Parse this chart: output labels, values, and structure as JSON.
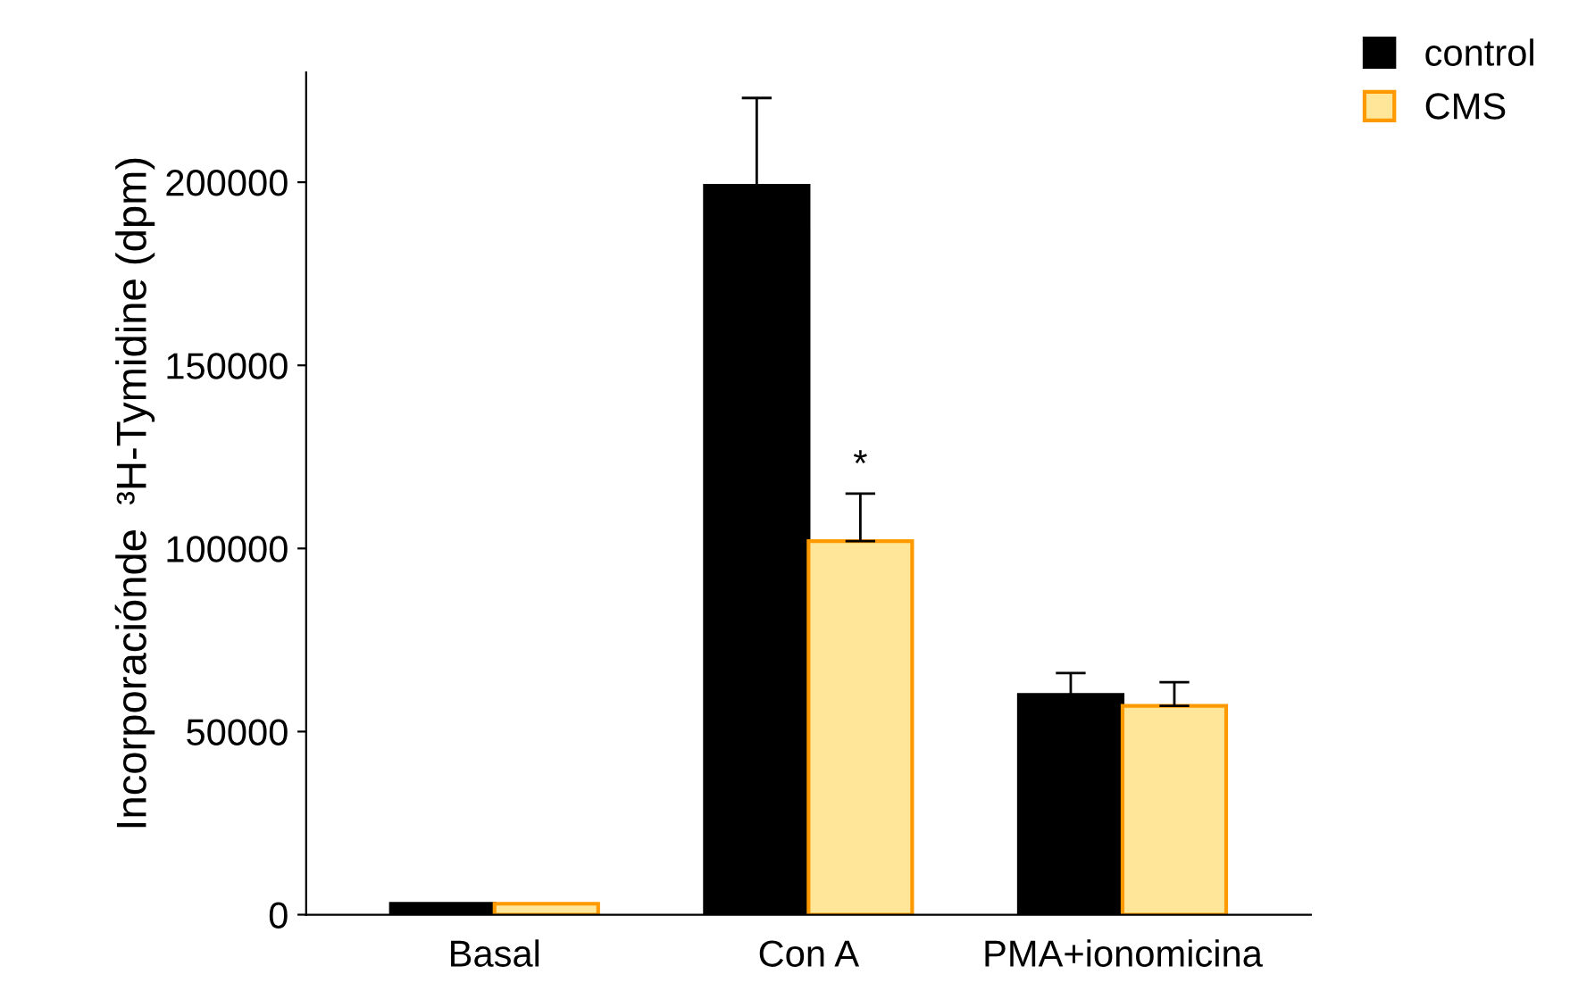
{
  "chart_data": {
    "type": "bar",
    "ylabel": "Incorporaciónde  ³H-Tymidine (dpm)",
    "categories": [
      "Basal",
      "Con A",
      "PMA+ionomicina"
    ],
    "series": [
      {
        "name": "control",
        "color": "#000000",
        "values": [
          3000,
          199000,
          60000
        ],
        "errors": [
          null,
          [
            199000,
            223000
          ],
          [
            60000,
            66000
          ]
        ]
      },
      {
        "name": "CMS",
        "color": "#ffe699",
        "values": [
          3000,
          102000,
          57000
        ],
        "errors": [
          null,
          [
            102000,
            115000
          ],
          [
            57000,
            63500
          ]
        ]
      }
    ],
    "annotations": [
      {
        "text": "*",
        "x": "Con A",
        "y": 115000
      }
    ],
    "ylim": [
      0,
      230000
    ],
    "yticks": [
      0,
      50000,
      100000,
      150000,
      200000
    ],
    "grid": false,
    "legend": "top right"
  }
}
